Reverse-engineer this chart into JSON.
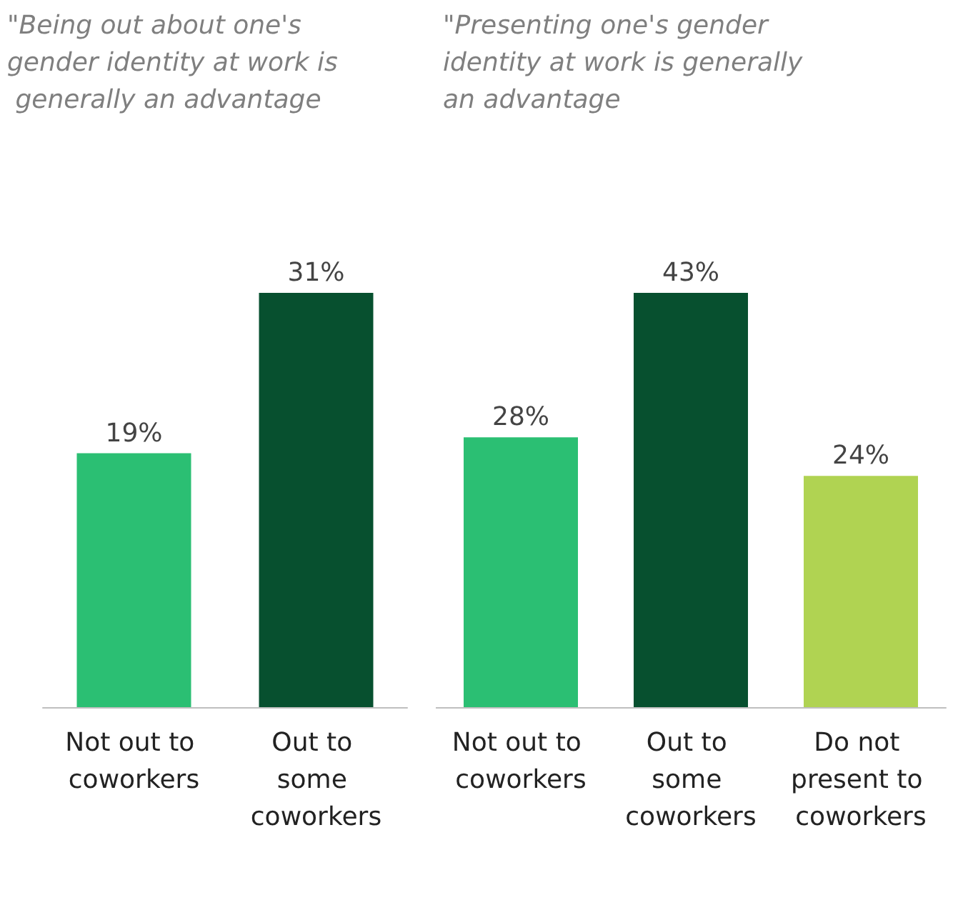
{
  "chart_data": [
    {
      "type": "bar",
      "title": "\"Being out about one's gender identity at work is generally an advantage",
      "categories": [
        "Not out to coworkers",
        "Out to some coworkers"
      ],
      "values": [
        19,
        31
      ],
      "colors": [
        "#2bbf73",
        "#07502f"
      ],
      "value_labels": [
        "19%",
        "31%"
      ]
    },
    {
      "type": "bar",
      "title": "\"Presenting one's gender identity at work is generally an advantage",
      "categories": [
        "Not out to coworkers",
        "Out to some coworkers",
        "Do not present to coworkers"
      ],
      "values": [
        28,
        43,
        24
      ],
      "colors": [
        "#2bbf73",
        "#07502f",
        "#b0d352"
      ],
      "value_labels": [
        "28%",
        "43%",
        "24%"
      ]
    }
  ]
}
